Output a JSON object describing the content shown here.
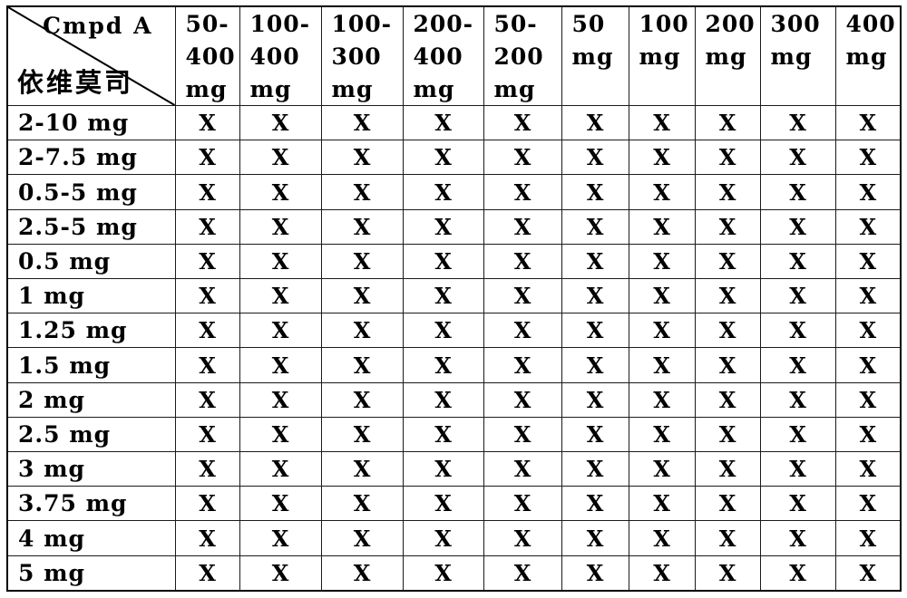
{
  "page": {
    "background": "#ffffff",
    "text_color": "#000000",
    "border_color": "#000000"
  },
  "table": {
    "corner": {
      "top_label": "Cmpd A",
      "bottom_label": "依维莫司"
    },
    "column_headers": [
      {
        "label": "50-400 mg",
        "lines": [
          "50-",
          "400",
          "mg"
        ]
      },
      {
        "label": "100-400 mg",
        "lines": [
          "100-",
          "400",
          "mg"
        ]
      },
      {
        "label": "100-300 mg",
        "lines": [
          "100-",
          "300",
          "mg"
        ]
      },
      {
        "label": "200-400 mg",
        "lines": [
          "200-",
          "400",
          "mg"
        ]
      },
      {
        "label": "50-200 mg",
        "lines": [
          "50-",
          "200",
          "mg"
        ]
      },
      {
        "label": "50 mg",
        "lines": [
          "50",
          "mg"
        ]
      },
      {
        "label": "100 mg",
        "lines": [
          "100",
          "mg"
        ]
      },
      {
        "label": "200 mg",
        "lines": [
          "200",
          "mg"
        ]
      },
      {
        "label": "300 mg",
        "lines": [
          "300",
          "mg"
        ]
      },
      {
        "label": "400 mg",
        "lines": [
          "400",
          "mg"
        ]
      }
    ],
    "rows": [
      {
        "label": "2-10 mg",
        "cells": [
          "X",
          "X",
          "X",
          "X",
          "X",
          "X",
          "X",
          "X",
          "X",
          "X"
        ]
      },
      {
        "label": "2-7.5 mg",
        "cells": [
          "X",
          "X",
          "X",
          "X",
          "X",
          "X",
          "X",
          "X",
          "X",
          "X"
        ]
      },
      {
        "label": "0.5-5 mg",
        "cells": [
          "X",
          "X",
          "X",
          "X",
          "X",
          "X",
          "X",
          "X",
          "X",
          "X"
        ]
      },
      {
        "label": "2.5-5 mg",
        "cells": [
          "X",
          "X",
          "X",
          "X",
          "X",
          "X",
          "X",
          "X",
          "X",
          "X"
        ]
      },
      {
        "label": "0.5 mg",
        "cells": [
          "X",
          "X",
          "X",
          "X",
          "X",
          "X",
          "X",
          "X",
          "X",
          "X"
        ]
      },
      {
        "label": "1 mg",
        "cells": [
          "X",
          "X",
          "X",
          "X",
          "X",
          "X",
          "X",
          "X",
          "X",
          "X"
        ]
      },
      {
        "label": "1.25 mg",
        "cells": [
          "X",
          "X",
          "X",
          "X",
          "X",
          "X",
          "X",
          "X",
          "X",
          "X"
        ]
      },
      {
        "label": "1.5 mg",
        "cells": [
          "X",
          "X",
          "X",
          "X",
          "X",
          "X",
          "X",
          "X",
          "X",
          "X"
        ]
      },
      {
        "label": "2 mg",
        "cells": [
          "X",
          "X",
          "X",
          "X",
          "X",
          "X",
          "X",
          "X",
          "X",
          "X"
        ]
      },
      {
        "label": "2.5 mg",
        "cells": [
          "X",
          "X",
          "X",
          "X",
          "X",
          "X",
          "X",
          "X",
          "X",
          "X"
        ]
      },
      {
        "label": "3 mg",
        "cells": [
          "X",
          "X",
          "X",
          "X",
          "X",
          "X",
          "X",
          "X",
          "X",
          "X"
        ]
      },
      {
        "label": "3.75 mg",
        "cells": [
          "X",
          "X",
          "X",
          "X",
          "X",
          "X",
          "X",
          "X",
          "X",
          "X"
        ]
      },
      {
        "label": "4 mg",
        "cells": [
          "X",
          "X",
          "X",
          "X",
          "X",
          "X",
          "X",
          "X",
          "X",
          "X"
        ]
      },
      {
        "label": "5 mg",
        "cells": [
          "X",
          "X",
          "X",
          "X",
          "X",
          "X",
          "X",
          "X",
          "X",
          "X"
        ]
      }
    ]
  }
}
